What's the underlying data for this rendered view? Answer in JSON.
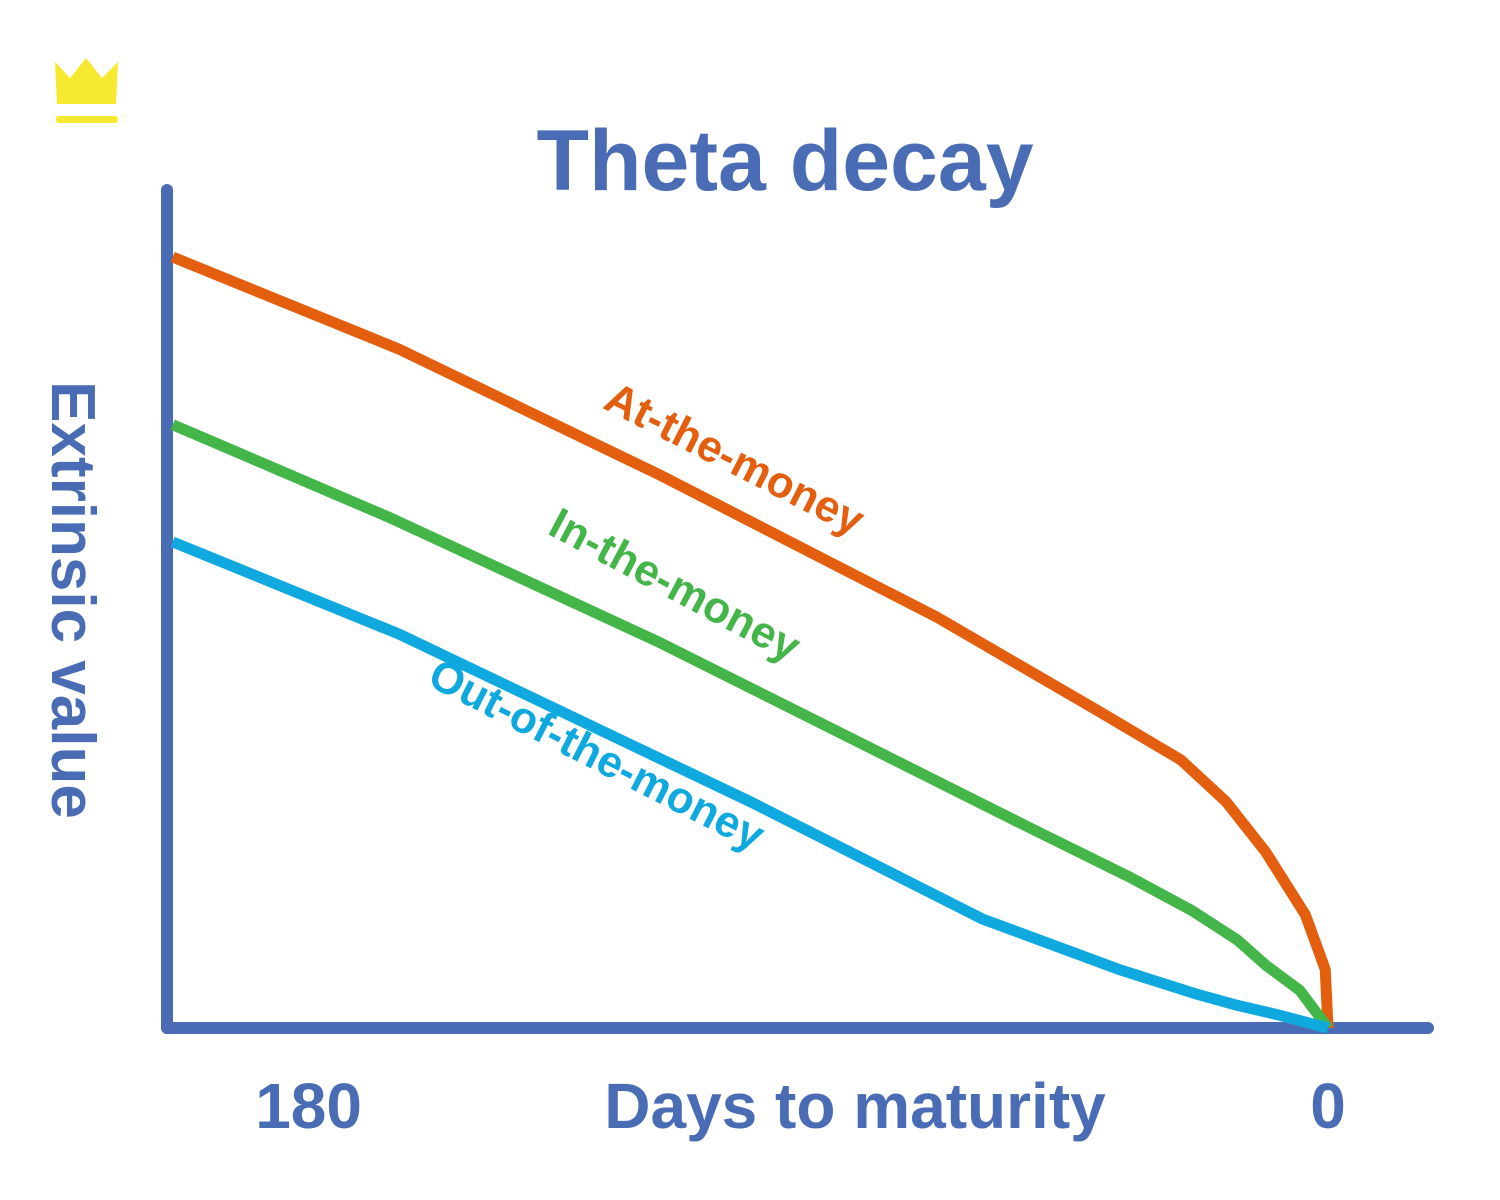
{
  "chart_data": {
    "type": "line",
    "title": "Theta decay",
    "x_label": "Days to maturity",
    "y_label": "Extrinsic value",
    "xlim": [
      205,
      -18
    ],
    "ylim": [
      0,
      100
    ],
    "xticks": [
      180,
      0
    ],
    "grid": false,
    "series": [
      {
        "name": "At-the-money",
        "color": "#e35f0f",
        "x": [
          204,
          164,
          118,
          69,
          41,
          26,
          18,
          11,
          4,
          0.5,
          0
        ],
        "values": [
          92,
          81,
          66,
          49,
          38,
          32,
          27,
          21,
          13.5,
          7,
          0
        ]
      },
      {
        "name": "In-the-money",
        "color": "#43b549",
        "x": [
          204,
          166,
          118,
          53,
          35,
          24,
          16,
          11,
          5,
          0
        ],
        "values": [
          72,
          61,
          46,
          24,
          18,
          14,
          10.5,
          7.5,
          4.5,
          0
        ]
      },
      {
        "name": "Out-of-the-money",
        "color": "#0fa9e0",
        "x": [
          204,
          164,
          102,
          61,
          37,
          23,
          16,
          9,
          0
        ],
        "values": [
          58,
          47,
          27,
          13,
          7,
          4,
          2.7,
          1.6,
          0
        ]
      }
    ]
  }
}
